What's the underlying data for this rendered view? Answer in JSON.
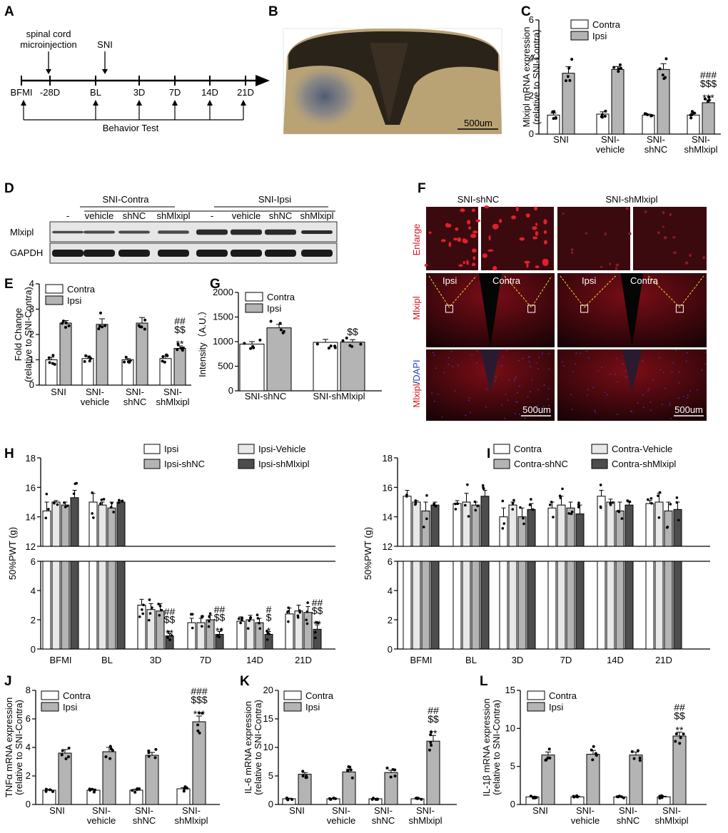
{
  "panels": {
    "A": {
      "label": "A",
      "annot_injection": [
        "spinal cord",
        "microinjection"
      ],
      "annot_sni": "SNI",
      "timepoints": [
        "BFMI",
        "-28D",
        "BL",
        "3D",
        "7D",
        "14D",
        "21D"
      ],
      "behavior": "Behavior Test"
    },
    "B": {
      "label": "B",
      "scale": "500um"
    },
    "D": {
      "label": "D",
      "group_contra": "SNI-Contra",
      "group_ipsi": "SNI-Ipsi",
      "lanes": [
        "-",
        "vehicle",
        "shNC",
        "shMlxipl",
        "-",
        "vehicle",
        "shNC",
        "shMlxipl"
      ],
      "rows": [
        "Mlxipl",
        "GAPDH"
      ]
    },
    "F": {
      "label": "F",
      "col_titles": [
        "SNI-shNC",
        "SNI-shMlxipl"
      ],
      "row_labels": [
        "Enlarge",
        "Mlxipl",
        "Mlxipl",
        "DAPI"
      ],
      "row_label_sep": "/",
      "side_ipsi": "Ipsi",
      "side_contra": "Contra",
      "scale": "500um"
    }
  },
  "colors": {
    "white_bar": "#ffffff",
    "gray_bar": "#b4b4b4",
    "light_bar": "#e8e8e8",
    "dark_bar": "#4d4d4d",
    "if_red": "#b0141e"
  },
  "chart_data": [
    {
      "id": "C",
      "label": "C",
      "type": "bar",
      "ylabel": [
        "Mlxipl mRNA expression",
        "(relative to SNI-Contra)"
      ],
      "categories": [
        "SNI",
        "SNI-\nvehicle",
        "SNI-\nshNC",
        "SNI-\nshMlxipl"
      ],
      "ylim": [
        0,
        6
      ],
      "yticks": [
        "0",
        "2",
        "4",
        "6"
      ],
      "legend": [
        "Contra",
        "Ipsi"
      ],
      "series": [
        {
          "name": "Contra",
          "values": [
            1.0,
            1.05,
            1.0,
            1.0
          ],
          "err": [
            0.1,
            0.12,
            0.05,
            0.1
          ]
        },
        {
          "name": "Ipsi",
          "values": [
            3.2,
            3.4,
            3.4,
            1.65
          ],
          "err": [
            0.35,
            0.15,
            0.3,
            0.15
          ]
        }
      ],
      "significance": [
        {
          "category": 3,
          "marks": [
            "###",
            "$$$",
            "***"
          ]
        }
      ]
    },
    {
      "id": "E",
      "label": "E",
      "type": "bar",
      "ylabel": [
        "Fold Change",
        "(relative to SNI-Contra)"
      ],
      "categories": [
        "SNI",
        "SNI-\nvehicle",
        "SNI-\nshNC",
        "SNI-\nshMlxipl"
      ],
      "ylim": [
        0,
        4
      ],
      "yticks": [
        "0",
        "1",
        "2",
        "3",
        "4"
      ],
      "legend": [
        "Contra",
        "Ipsi"
      ],
      "series": [
        {
          "name": "Contra",
          "values": [
            1.0,
            1.05,
            1.0,
            1.05
          ],
          "err": [
            0.1,
            0.1,
            0.05,
            0.1
          ]
        },
        {
          "name": "Ipsi",
          "values": [
            2.45,
            2.4,
            2.45,
            1.45
          ],
          "err": [
            0.1,
            0.22,
            0.22,
            0.1
          ]
        }
      ],
      "significance": [
        {
          "category": 3,
          "marks": [
            "##",
            "$$",
            "**"
          ]
        }
      ]
    },
    {
      "id": "G",
      "label": "G",
      "type": "bar",
      "ylabel": [
        "Intensity（A.U.）"
      ],
      "categories": [
        "SNI-shNC",
        "SNI-shMlxipl"
      ],
      "ylim": [
        0,
        2000
      ],
      "yticks": [
        "0",
        "500",
        "1000",
        "1500",
        "2000"
      ],
      "legend": [
        "Contra",
        "Ipsi"
      ],
      "series": [
        {
          "name": "Contra",
          "values": [
            950,
            985
          ],
          "err": [
            50,
            60
          ]
        },
        {
          "name": "Ipsi",
          "values": [
            1280,
            990
          ],
          "err": [
            70,
            50
          ]
        }
      ],
      "significance": [
        {
          "category": 1,
          "marks": [
            "$$"
          ]
        }
      ]
    },
    {
      "id": "H",
      "label": "H",
      "type": "bar",
      "ylabel": [
        "50%PWT (g)"
      ],
      "categories": [
        "BFMI",
        "BL",
        "3D",
        "7D",
        "14D",
        "21D"
      ],
      "axis_break": {
        "lower": [
          0,
          6
        ],
        "upper": [
          12,
          18
        ]
      },
      "yticks_lower": [
        "0",
        "2",
        "4",
        "6"
      ],
      "yticks_upper": [
        "12",
        "14",
        "16",
        "18"
      ],
      "legend": [
        "Ipsi",
        "Ipsi-Vehicle",
        "Ipsi-shNC",
        "Ipsi-shMlxipl"
      ],
      "series": [
        {
          "name": "Ipsi",
          "values": [
            14.4,
            15.0,
            3.0,
            1.8,
            1.9,
            2.4
          ],
          "err": [
            0.6,
            0.6,
            0.4,
            0.3,
            0.3,
            0.4
          ]
        },
        {
          "name": "Ipsi-Vehicle",
          "values": [
            15.0,
            14.8,
            2.7,
            1.8,
            2.0,
            2.6
          ],
          "err": [
            0.1,
            0.2,
            0.4,
            0.3,
            0.3,
            0.4
          ]
        },
        {
          "name": "Ipsi-shNC",
          "values": [
            14.8,
            14.6,
            2.6,
            2.0,
            1.8,
            2.5
          ],
          "err": [
            0.2,
            0.4,
            0.5,
            0.3,
            0.3,
            0.4
          ]
        },
        {
          "name": "Ipsi-shMlxipl",
          "values": [
            15.3,
            15.0,
            0.9,
            1.0,
            1.0,
            1.35
          ],
          "err": [
            0.5,
            0.1,
            0.15,
            0.2,
            0.2,
            0.3
          ]
        }
      ],
      "significance": [
        {
          "category": 2,
          "marks": [
            "##",
            "$$",
            "**"
          ]
        },
        {
          "category": 3,
          "marks": [
            "##",
            "$$",
            "**"
          ]
        },
        {
          "category": 4,
          "marks": [
            "#",
            "$",
            "*"
          ]
        },
        {
          "category": 5,
          "marks": [
            "##",
            "$$",
            "**"
          ]
        }
      ]
    },
    {
      "id": "I",
      "label": "I",
      "type": "bar",
      "ylabel": [
        "50%PWT (g)"
      ],
      "categories": [
        "BFMI",
        "BL",
        "3D",
        "7D",
        "14D",
        "21D"
      ],
      "axis_break": {
        "lower": [
          0,
          6
        ],
        "upper": [
          12,
          18
        ]
      },
      "yticks_lower": [
        "0",
        "2",
        "4",
        "6"
      ],
      "yticks_upper": [
        "12",
        "14",
        "16",
        "18"
      ],
      "legend": [
        "Contra",
        "Contra-Vehicle",
        "Contra-shNC",
        "Contra-shMlxipl"
      ],
      "series": [
        {
          "name": "Contra",
          "values": [
            15.4,
            14.9,
            14.0,
            14.6,
            15.4,
            14.9
          ],
          "err": [
            0.4,
            0.2,
            0.6,
            0.4,
            0.4,
            0.2
          ]
        },
        {
          "name": "Contra-Vehicle",
          "values": [
            15.0,
            15.0,
            14.8,
            14.8,
            15.0,
            15.0
          ],
          "err": [
            0.1,
            0.6,
            0.2,
            0.6,
            0.2,
            0.6
          ]
        },
        {
          "name": "Contra-shNC",
          "values": [
            14.4,
            14.8,
            14.0,
            14.6,
            14.4,
            14.4
          ],
          "err": [
            0.6,
            0.2,
            0.6,
            0.4,
            0.6,
            0.6
          ]
        },
        {
          "name": "Contra-shMlxipl",
          "values": [
            14.8,
            15.4,
            14.5,
            14.2,
            14.8,
            14.5
          ],
          "err": [
            0.2,
            0.4,
            0.4,
            0.6,
            0.2,
            0.5
          ]
        }
      ],
      "significance": []
    },
    {
      "id": "J",
      "label": "J",
      "type": "bar",
      "ylabel": [
        "TNFα mRNA expression",
        "(relative to SNI-Contra)"
      ],
      "categories": [
        "SNI",
        "SNI-\nvehicle",
        "SNI-\nshNC",
        "SNI-\nshMlxipl"
      ],
      "ylim": [
        0,
        8
      ],
      "yticks": [
        "0",
        "2",
        "4",
        "6",
        "8"
      ],
      "legend": [
        "Contra",
        "Ipsi"
      ],
      "series": [
        {
          "name": "Contra",
          "values": [
            1.0,
            1.0,
            1.0,
            1.1
          ],
          "err": [
            0.05,
            0.08,
            0.08,
            0.08
          ]
        },
        {
          "name": "Ipsi",
          "values": [
            3.6,
            3.7,
            3.45,
            5.8
          ],
          "err": [
            0.25,
            0.3,
            0.2,
            0.4
          ]
        }
      ],
      "significance": [
        {
          "category": 3,
          "marks": [
            "###",
            "$$$",
            "***"
          ]
        }
      ]
    },
    {
      "id": "K",
      "label": "K",
      "type": "bar",
      "ylabel": [
        "IL-6 mRNA expression",
        "(relative to SNI-Contra)"
      ],
      "categories": [
        "SNI",
        "SNI-\nvehicle",
        "SNI-\nshNC",
        "SNI-\nshMlxipl"
      ],
      "ylim": [
        0,
        20
      ],
      "yticks": [
        "0",
        "5",
        "10",
        "15",
        "20"
      ],
      "legend": [
        "Contra",
        "Ipsi"
      ],
      "series": [
        {
          "name": "Contra",
          "values": [
            1.0,
            1.0,
            1.0,
            1.0
          ],
          "err": [
            0.1,
            0.1,
            0.08,
            0.08
          ]
        },
        {
          "name": "Ipsi",
          "values": [
            5.3,
            5.7,
            5.6,
            11.1
          ],
          "err": [
            0.3,
            0.5,
            0.4,
            1.0
          ]
        }
      ],
      "significance": [
        {
          "category": 3,
          "marks": [
            "##",
            "$$",
            "**"
          ]
        }
      ]
    },
    {
      "id": "L",
      "label": "L",
      "type": "bar",
      "ylabel": [
        "IL-1β mRNA expression",
        "(relative to SNI-Contra)"
      ],
      "categories": [
        "SNI",
        "SNI-\nvehicle",
        "SNI-\nshNC",
        "SNI-\nshMlxipl"
      ],
      "ylim": [
        0,
        15
      ],
      "yticks": [
        "0",
        "5",
        "10",
        "15"
      ],
      "legend": [
        "Contra",
        "Ipsi"
      ],
      "series": [
        {
          "name": "Contra",
          "values": [
            1.0,
            1.0,
            1.0,
            1.0
          ],
          "err": [
            0.08,
            0.1,
            0.08,
            0.08
          ]
        },
        {
          "name": "Ipsi",
          "values": [
            6.5,
            6.6,
            6.5,
            9.0
          ],
          "err": [
            0.4,
            0.5,
            0.4,
            0.5
          ]
        }
      ],
      "significance": [
        {
          "category": 3,
          "marks": [
            "##",
            "$$",
            "**"
          ]
        }
      ]
    }
  ]
}
